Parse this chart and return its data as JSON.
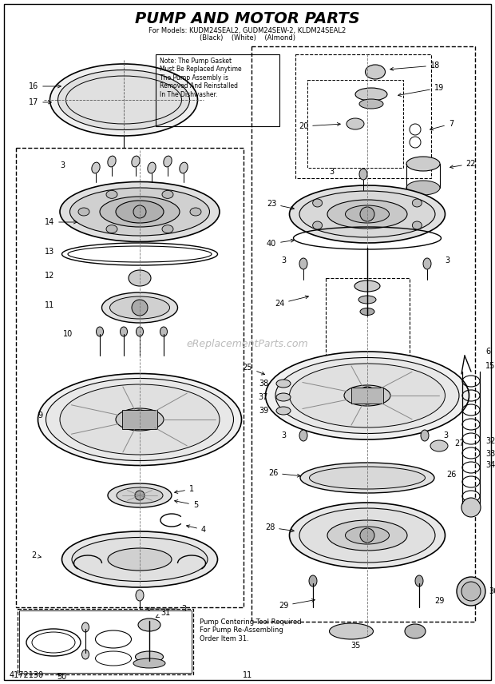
{
  "title": "PUMP AND MOTOR PARTS",
  "subtitle_line1": "For Models: KUDM24SEAL2, GUDM24SEW-2, KLDM24SEAL2",
  "subtitle_line2": "(Black)    (White)    (Almond)",
  "background_color": "#ffffff",
  "page_number": "11",
  "doc_number": "4172130",
  "note_text": "Note: The Pump Gasket\nMust Be Replaced Anytime\nThe Pump Assembly is\nRemoved And Reinstalled\nIn The Dishwasher.",
  "pump_tool_text": "Pump Centering Tool Required\nFor Pump Re-Assembling\nOrder Item 31.",
  "watermark": "eReplacementParts.com",
  "fig_width": 6.2,
  "fig_height": 8.56,
  "dpi": 100
}
